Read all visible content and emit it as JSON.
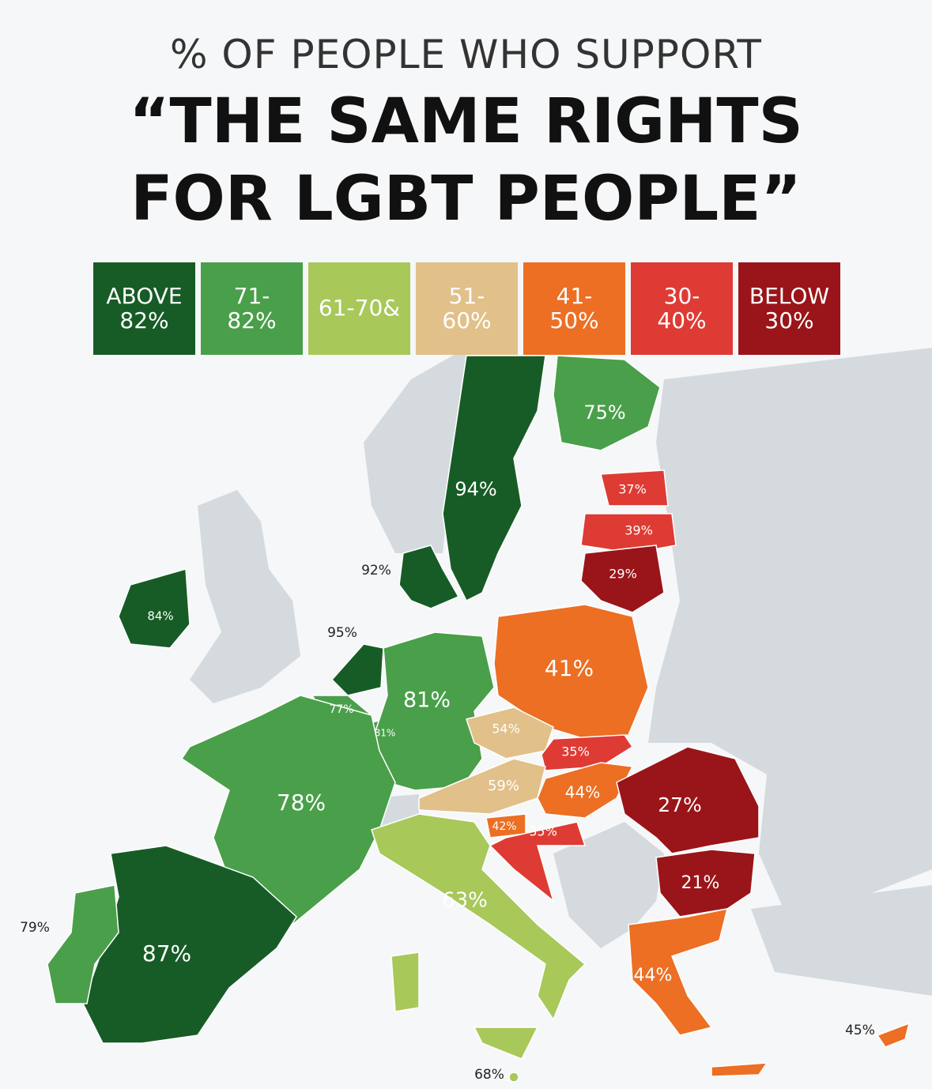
{
  "header": {
    "subtitle": "% OF PEOPLE WHO SUPPORT",
    "title": "“THE SAME RIGHTS FOR LGBT PEOPLE”"
  },
  "legend": [
    {
      "label": "ABOVE 82%",
      "color": "#175c26"
    },
    {
      "label": "71-82%",
      "color": "#4a9f4a"
    },
    {
      "label": "61-70&",
      "color": "#a8c85a"
    },
    {
      "label": "51-60%",
      "color": "#e2c08a"
    },
    {
      "label": "41-50%",
      "color": "#ec6f24"
    },
    {
      "label": "30-40%",
      "color": "#de3b34"
    },
    {
      "label": "BELOW 30%",
      "color": "#9a1519"
    }
  ],
  "regions": [
    {
      "label": "94%",
      "color": "#175c26"
    },
    {
      "label": "75%",
      "color": "#4a9f4a"
    },
    {
      "label": "37%",
      "color": "#de3b34"
    },
    {
      "label": "39%",
      "color": "#de3b34"
    },
    {
      "label": "29%",
      "color": "#9a1519"
    },
    {
      "label": "92%",
      "color": "#175c26"
    },
    {
      "label": "84%",
      "color": "#175c26"
    },
    {
      "label": "95%",
      "color": "#175c26"
    },
    {
      "label": "77%",
      "color": "#4a9f4a"
    },
    {
      "label": "81%",
      "color": "#4a9f4a"
    },
    {
      "label": "81%",
      "color": "#4a9f4a"
    },
    {
      "label": "41%",
      "color": "#ec6f24"
    },
    {
      "label": "54%",
      "color": "#e2c08a"
    },
    {
      "label": "35%",
      "color": "#de3b34"
    },
    {
      "label": "59%",
      "color": "#e2c08a"
    },
    {
      "label": "44%",
      "color": "#ec6f24"
    },
    {
      "label": "27%",
      "color": "#9a1519"
    },
    {
      "label": "21%",
      "color": "#9a1519"
    },
    {
      "label": "78%",
      "color": "#4a9f4a"
    },
    {
      "label": "42%",
      "color": "#ec6f24"
    },
    {
      "label": "35%",
      "color": "#de3b34"
    },
    {
      "label": "63%",
      "color": "#a8c85a"
    },
    {
      "label": "44%",
      "color": "#ec6f24"
    },
    {
      "label": "87%",
      "color": "#175c26"
    },
    {
      "label": "79%",
      "color": "#4a9f4a"
    },
    {
      "label": "45%",
      "color": "#ec6f24"
    },
    {
      "label": "68%",
      "color": "#a8c85a"
    }
  ]
}
